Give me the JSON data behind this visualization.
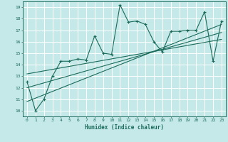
{
  "xlabel": "Humidex (Indice chaleur)",
  "bg_color": "#c5e8e8",
  "line_color": "#1a6b5a",
  "xlim": [
    -0.5,
    23.5
  ],
  "ylim": [
    9.5,
    19.5
  ],
  "xticks": [
    0,
    1,
    2,
    3,
    4,
    5,
    6,
    7,
    8,
    9,
    10,
    11,
    12,
    13,
    14,
    15,
    16,
    17,
    18,
    19,
    20,
    21,
    22,
    23
  ],
  "yticks": [
    10,
    11,
    12,
    13,
    14,
    15,
    16,
    17,
    18,
    19
  ],
  "main_x": [
    0,
    1,
    2,
    3,
    4,
    5,
    6,
    7,
    8,
    9,
    10,
    11,
    12,
    13,
    14,
    15,
    16,
    17,
    18,
    19,
    20,
    21,
    22,
    23
  ],
  "main_y": [
    12.5,
    10.0,
    11.0,
    13.0,
    14.3,
    14.3,
    14.5,
    14.4,
    16.5,
    15.0,
    14.9,
    19.2,
    17.7,
    17.8,
    17.5,
    16.0,
    15.1,
    16.9,
    16.9,
    17.0,
    17.0,
    18.6,
    14.3,
    17.8
  ],
  "trend1_x": [
    0,
    23
  ],
  "trend1_y": [
    10.8,
    17.5
  ],
  "trend2_x": [
    0,
    23
  ],
  "trend2_y": [
    12.0,
    16.8
  ],
  "trend3_x": [
    0,
    23
  ],
  "trend3_y": [
    13.2,
    16.2
  ]
}
